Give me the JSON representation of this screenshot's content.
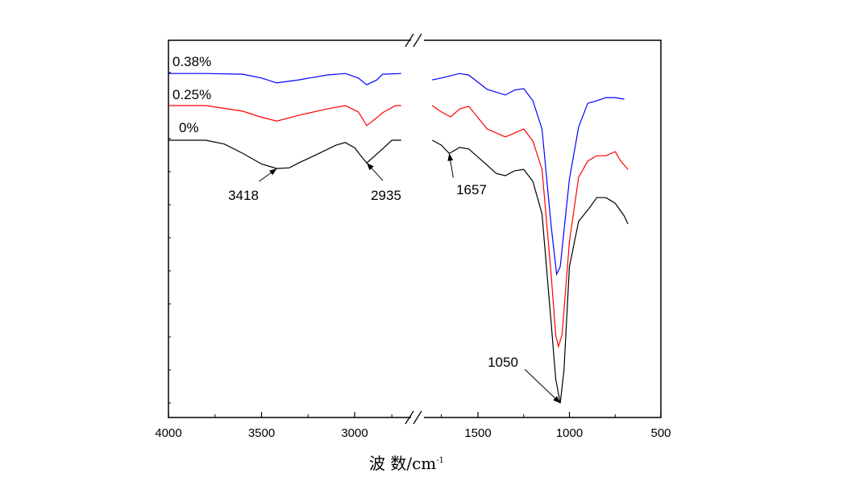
{
  "chart_data": {
    "type": "line",
    "title": "",
    "xlabel": "波 数/cm",
    "xlabel_sup": "-1",
    "ylabel": "",
    "xaxis": {
      "reversed": true,
      "broken": true,
      "segments": [
        [
          4000,
          2750
        ],
        [
          1750,
          500
        ]
      ],
      "ticks": [
        {
          "value": 4000,
          "label": "4000"
        },
        {
          "value": 3500,
          "label": "3500"
        },
        {
          "value": 3000,
          "label": "3000"
        },
        {
          "value": 1500,
          "label": "1500"
        },
        {
          "value": 1000,
          "label": "1000"
        },
        {
          "value": 500,
          "label": "500"
        }
      ],
      "minor_ticks": [
        3750,
        3250,
        2800,
        1700,
        1250,
        750
      ]
    },
    "ylim": [
      0,
      100
    ],
    "grid": false,
    "series": [
      {
        "name": "0.38%",
        "color": "#0000ff",
        "x": [
          4000,
          3800,
          3600,
          3500,
          3418,
          3300,
          3150,
          3050,
          2980,
          2935,
          2880,
          2850,
          2750,
          1750,
          1700,
          1600,
          1550,
          1450,
          1350,
          1300,
          1250,
          1200,
          1150,
          1100,
          1070,
          1050,
          1000,
          950,
          900,
          850,
          800,
          750,
          700
        ],
        "y": [
          91.2,
          91.2,
          91,
          90,
          88.7,
          89.5,
          90.8,
          91.2,
          90,
          88.2,
          89.5,
          91,
          91.2,
          89.5,
          90,
          91.2,
          90.8,
          87,
          85.5,
          86.8,
          87.2,
          84,
          76.5,
          50.9,
          38,
          40,
          63.2,
          77,
          83.3,
          84,
          84.8,
          84.8,
          84.4
        ]
      },
      {
        "name": "0.25%",
        "color": "#ff0000",
        "x": [
          4000,
          3800,
          3600,
          3500,
          3418,
          3300,
          3150,
          3050,
          2980,
          2935,
          2880,
          2850,
          2780,
          2750,
          1750,
          1700,
          1650,
          1600,
          1550,
          1450,
          1350,
          1300,
          1250,
          1200,
          1150,
          1100,
          1075,
          1060,
          1040,
          1000,
          950,
          900,
          850,
          800,
          750,
          720,
          680
        ],
        "y": [
          82.7,
          82.7,
          81.2,
          79.6,
          78.6,
          80.1,
          81.8,
          82.7,
          81,
          77.4,
          79.5,
          80.8,
          82.7,
          82.7,
          82.7,
          81,
          79.7,
          81.8,
          82.5,
          76.5,
          74.4,
          75.4,
          76.5,
          73.3,
          65.8,
          38,
          21.8,
          18.8,
          22,
          46.6,
          63.7,
          68,
          69.4,
          69.4,
          70.5,
          68,
          65.8
        ]
      },
      {
        "name": "0%",
        "color": "#000000",
        "x": [
          4000,
          3800,
          3700,
          3600,
          3500,
          3418,
          3350,
          3300,
          3200,
          3100,
          3050,
          3000,
          2960,
          2935,
          2900,
          2850,
          2800,
          2750,
          1750,
          1700,
          1657,
          1600,
          1550,
          1450,
          1400,
          1350,
          1300,
          1250,
          1200,
          1150,
          1100,
          1075,
          1050,
          1030,
          1000,
          950,
          900,
          850,
          800,
          750,
          700,
          680
        ],
        "y": [
          73.5,
          73.5,
          72.5,
          70,
          67.2,
          66,
          66.2,
          67.5,
          69.8,
          72.2,
          72.9,
          71.5,
          69,
          67.5,
          69,
          71.2,
          73.5,
          73.5,
          73.5,
          72.2,
          70,
          71.6,
          71.2,
          66.9,
          64.7,
          64.1,
          65.4,
          65.8,
          62.6,
          54,
          25.2,
          10.2,
          3.8,
          12.4,
          40,
          52,
          55,
          58.3,
          58.3,
          56.8,
          53.4,
          51.3
        ]
      }
    ],
    "legend": "inline-left",
    "annotations": [
      {
        "text": "3418",
        "x": 3418,
        "y": 66
      },
      {
        "text": "2935",
        "x": 2935,
        "y": 67.5
      },
      {
        "text": "1657",
        "x": 1657,
        "y": 70
      },
      {
        "text": "1050",
        "x": 1050,
        "y": 3.8
      }
    ]
  }
}
